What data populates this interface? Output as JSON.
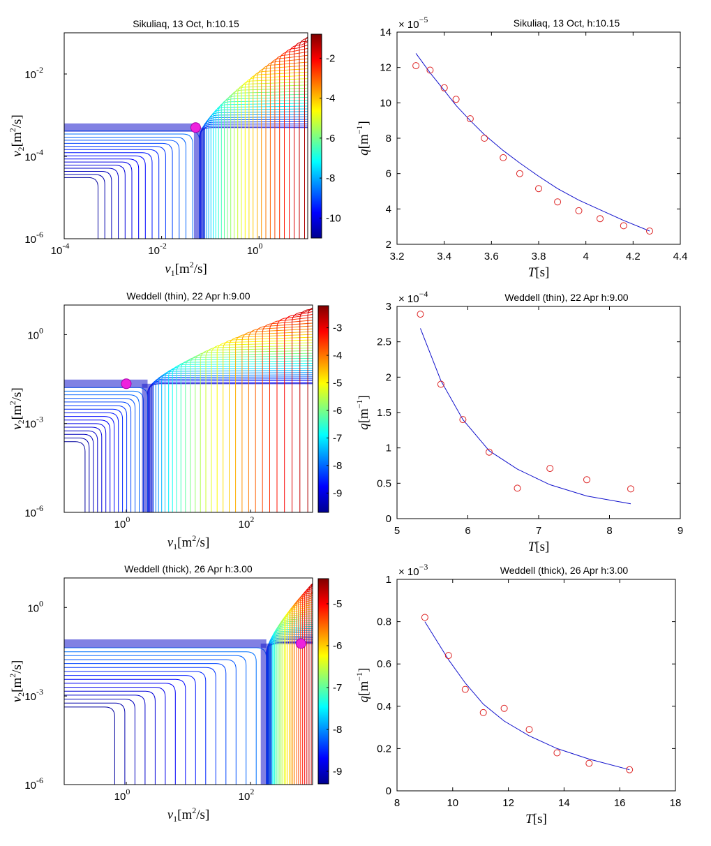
{
  "figure": {
    "layout": "3 rows x 2 columns; left column contour plots with colorbars, right column scatter plus fitted curve",
    "curve_color": "#1010cc",
    "marker_color": "#dd2222",
    "optimum_marker_color": "#ee22dd"
  },
  "chart_data": [
    {
      "type": "contour",
      "title": "Sikuliaq, 13 Oct, h:10.15",
      "xlabel_sym": "ν",
      "xlabel_sub": "1",
      "ylabel_sym": "ν",
      "ylabel_sub": "2",
      "label_unit_open": "[m",
      "label_unit_exp": "2",
      "label_unit_close": "/s]",
      "xscale": "log",
      "yscale": "log",
      "xlim": [
        0.0001,
        10
      ],
      "ylim": [
        1e-06,
        0.1
      ],
      "xtick_exps": [
        "-4",
        "-2",
        "0"
      ],
      "xtick_vals": [
        0.0001,
        0.01,
        1
      ],
      "ytick_exps": [
        "-6",
        "-4",
        "-2"
      ],
      "ytick_vals": [
        1e-06,
        0.0001,
        0.01
      ],
      "tick_base": "10",
      "optimum": {
        "x": 0.05,
        "y": 0.0005
      },
      "valley_x": 0.06,
      "colorbar": {
        "min": -11,
        "max": -0.8,
        "ticks": [
          "-2",
          "-4",
          "-6",
          "-8",
          "-10"
        ],
        "tick_vals": [
          -2,
          -4,
          -6,
          -8,
          -10
        ]
      }
    },
    {
      "type": "scatter+line",
      "title": "Sikuliaq, 13 Oct, h:10.15",
      "xlabel": "T",
      "xunit": "[s]",
      "ylabel": "q",
      "yunit_open": "[m",
      "yunit_exp": "−1",
      "yunit_close": "]",
      "scale_base": "× 10",
      "scale_exp": "−5",
      "xlim": [
        3.2,
        4.4
      ],
      "ylim": [
        2,
        14
      ],
      "xticks": [
        "3.2",
        "3.4",
        "3.6",
        "3.8",
        "4",
        "4.2",
        "4.4"
      ],
      "xtick_vals": [
        3.2,
        3.4,
        3.6,
        3.8,
        4,
        4.2,
        4.4
      ],
      "yticks": [
        "2",
        "4",
        "6",
        "8",
        "10",
        "12",
        "14"
      ],
      "ytick_vals": [
        2,
        4,
        6,
        8,
        10,
        12,
        14
      ],
      "points": {
        "x": [
          3.28,
          3.34,
          3.4,
          3.45,
          3.51,
          3.57,
          3.65,
          3.72,
          3.8,
          3.88,
          3.97,
          4.06,
          4.16,
          4.27
        ],
        "y": [
          12.1,
          11.85,
          10.85,
          10.2,
          9.1,
          8.0,
          6.9,
          6.0,
          5.15,
          4.4,
          3.9,
          3.45,
          3.05,
          2.75
        ]
      },
      "fit": {
        "x": [
          3.28,
          3.34,
          3.4,
          3.45,
          3.51,
          3.57,
          3.65,
          3.72,
          3.8,
          3.88,
          3.97,
          4.06,
          4.16,
          4.27
        ],
        "y": [
          12.8,
          11.7,
          10.7,
          9.85,
          9.0,
          8.2,
          7.3,
          6.6,
          5.85,
          5.15,
          4.5,
          3.95,
          3.35,
          2.75
        ]
      }
    },
    {
      "type": "contour",
      "title": "Weddell (thin), 22 Apr h:9.00",
      "xlabel_sym": "ν",
      "xlabel_sub": "1",
      "ylabel_sym": "ν",
      "ylabel_sub": "2",
      "label_unit_open": "[m",
      "label_unit_exp": "2",
      "label_unit_close": "/s]",
      "xscale": "log",
      "yscale": "log",
      "xlim": [
        0.1,
        1000
      ],
      "ylim": [
        1e-06,
        10
      ],
      "xtick_exps": [
        "0",
        "2"
      ],
      "xtick_vals": [
        1,
        100
      ],
      "ytick_exps": [
        "-6",
        "-3",
        "0"
      ],
      "ytick_vals": [
        1e-06,
        0.001,
        1
      ],
      "tick_base": "10",
      "optimum": {
        "x": 1.0,
        "y": 0.022
      },
      "valley_x": 2.2,
      "colorbar": {
        "min": -9.7,
        "max": -2.2,
        "ticks": [
          "-3",
          "-4",
          "-5",
          "-6",
          "-7",
          "-8",
          "-9"
        ],
        "tick_vals": [
          -3,
          -4,
          -5,
          -6,
          -7,
          -8,
          -9
        ]
      }
    },
    {
      "type": "scatter+line",
      "title": "Weddell (thin), 22 Apr h:9.00",
      "xlabel": "T",
      "xunit": "[s]",
      "ylabel": "q",
      "yunit_open": "[m",
      "yunit_exp": "−1",
      "yunit_close": "]",
      "scale_base": "× 10",
      "scale_exp": "−4",
      "xlim": [
        5,
        9
      ],
      "ylim": [
        0,
        3
      ],
      "xticks": [
        "5",
        "6",
        "7",
        "8",
        "9"
      ],
      "xtick_vals": [
        5,
        6,
        7,
        8,
        9
      ],
      "yticks": [
        "0",
        "0.5",
        "1",
        "1.5",
        "2",
        "2.5",
        "3"
      ],
      "ytick_vals": [
        0,
        0.5,
        1,
        1.5,
        2,
        2.5,
        3
      ],
      "points": {
        "x": [
          5.33,
          5.62,
          5.93,
          6.3,
          6.7,
          7.16,
          7.68,
          8.3
        ],
        "y": [
          2.89,
          1.9,
          1.4,
          0.94,
          0.43,
          0.71,
          0.55,
          0.42
        ]
      },
      "fit": {
        "x": [
          5.33,
          5.62,
          5.93,
          6.3,
          6.7,
          7.16,
          7.68,
          8.3
        ],
        "y": [
          2.69,
          1.95,
          1.4,
          0.96,
          0.7,
          0.48,
          0.32,
          0.21
        ]
      }
    },
    {
      "type": "contour",
      "title": "Weddell (thick), 26 Apr h:3.00",
      "xlabel_sym": "ν",
      "xlabel_sub": "1",
      "ylabel_sym": "ν",
      "ylabel_sub": "2",
      "label_unit_open": "[m",
      "label_unit_exp": "2",
      "label_unit_close": "/s]",
      "xscale": "log",
      "yscale": "log",
      "xlim": [
        0.1,
        1000
      ],
      "ylim": [
        1e-06,
        10
      ],
      "xtick_exps": [
        "0",
        "2"
      ],
      "xtick_vals": [
        1,
        100
      ],
      "ytick_exps": [
        "-6",
        "-3",
        "0"
      ],
      "ytick_vals": [
        1e-06,
        0.001,
        1
      ],
      "tick_base": "10",
      "optimum": {
        "x": 650,
        "y": 0.06
      },
      "valley_x": 180,
      "colorbar": {
        "min": -9.3,
        "max": -4.4,
        "ticks": [
          "-5",
          "-6",
          "-7",
          "-8",
          "-9"
        ],
        "tick_vals": [
          -5,
          -6,
          -7,
          -8,
          -9
        ]
      }
    },
    {
      "type": "scatter+line",
      "title": "Weddell (thick), 26 Apr h:3.00",
      "xlabel": "T",
      "xunit": "[s]",
      "ylabel": "q",
      "yunit_open": "[m",
      "yunit_exp": "−1",
      "yunit_close": "]",
      "scale_base": "× 10",
      "scale_exp": "−3",
      "xlim": [
        8,
        18
      ],
      "ylim": [
        0,
        1
      ],
      "xticks": [
        "8",
        "10",
        "12",
        "14",
        "16",
        "18"
      ],
      "xtick_vals": [
        8,
        10,
        12,
        14,
        16,
        18
      ],
      "yticks": [
        "0",
        "0.2",
        "0.4",
        "0.6",
        "0.8",
        "1"
      ],
      "ytick_vals": [
        0,
        0.2,
        0.4,
        0.6,
        0.8,
        1
      ],
      "points": {
        "x": [
          9.0,
          9.85,
          10.45,
          11.1,
          11.85,
          12.75,
          13.75,
          14.9,
          16.35
        ],
        "y": [
          0.82,
          0.64,
          0.48,
          0.37,
          0.39,
          0.29,
          0.18,
          0.13,
          0.1
        ]
      },
      "fit": {
        "x": [
          9.0,
          9.85,
          10.45,
          11.1,
          11.85,
          12.75,
          13.75,
          14.9,
          16.35
        ],
        "y": [
          0.8,
          0.62,
          0.51,
          0.41,
          0.33,
          0.26,
          0.2,
          0.15,
          0.1
        ]
      }
    }
  ]
}
